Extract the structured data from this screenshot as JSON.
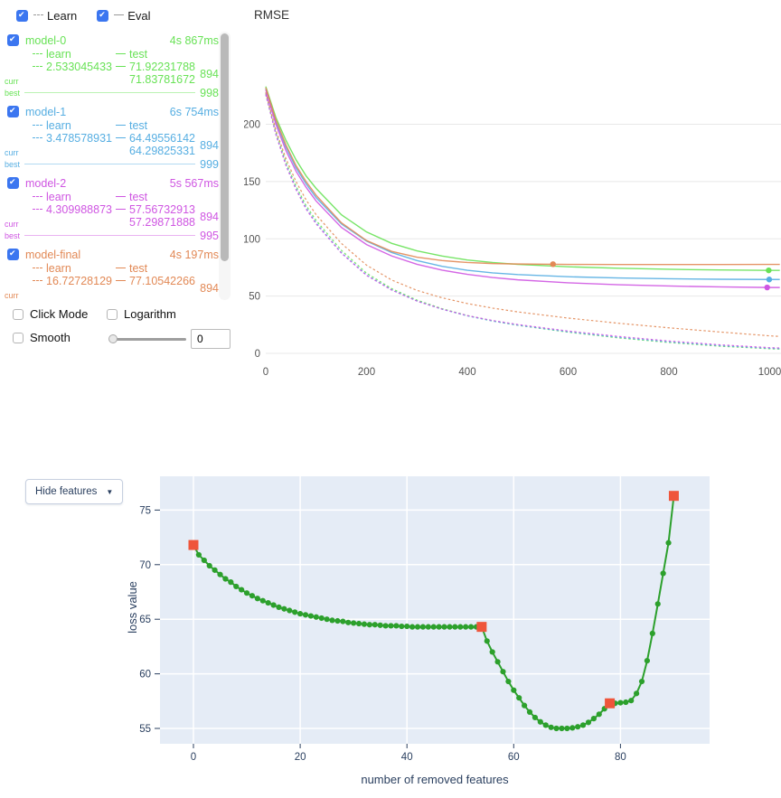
{
  "header": {
    "learn_label": "Learn",
    "learn_checked": true,
    "eval_label": "Eval",
    "eval_checked": true
  },
  "models": [
    {
      "name": "model-0",
      "color": "#68E256",
      "checked": true,
      "time": "4s 867ms",
      "learn_label": "learn",
      "test_label": "test",
      "curr_label": "curr",
      "best_label": "best",
      "curr_learn": "2.533045433",
      "curr_test": "71.92231788",
      "best_test": "71.83781672",
      "curr_iter": "894",
      "best_iter": "998"
    },
    {
      "name": "model-1",
      "color": "#56AEE2",
      "checked": true,
      "time": "6s 754ms",
      "learn_label": "learn",
      "test_label": "test",
      "curr_label": "curr",
      "best_label": "best",
      "curr_learn": "3.478578931",
      "curr_test": "64.49556142",
      "best_test": "64.29825331",
      "curr_iter": "894",
      "best_iter": "999"
    },
    {
      "name": "model-2",
      "color": "#CF56E2",
      "checked": true,
      "time": "5s 567ms",
      "learn_label": "learn",
      "test_label": "test",
      "curr_label": "curr",
      "best_label": "best",
      "curr_learn": "4.309988873",
      "curr_test": "57.56732913",
      "best_test": "57.29871888",
      "curr_iter": "894",
      "best_iter": "995"
    },
    {
      "name": "model-final",
      "color": "#E28956",
      "checked": true,
      "time": "4s 197ms",
      "learn_label": "learn",
      "test_label": "test",
      "curr_label": "curr",
      "best_label": "best",
      "curr_learn": "16.72728129",
      "curr_test": "77.10542266",
      "best_test": null,
      "curr_iter": "894",
      "best_iter": null
    }
  ],
  "controls": {
    "click_mode_label": "Click Mode",
    "click_mode_checked": false,
    "logarithm_label": "Logarithm",
    "logarithm_checked": false,
    "smooth_label": "Smooth",
    "smooth_checked": false,
    "smooth_value": "0"
  },
  "bottom": {
    "dropdown_label": "Hide features",
    "dropdown_arrow": "▼"
  },
  "chart_data": [
    {
      "type": "line",
      "title": "RMSE",
      "x_ticks": [
        0,
        200,
        400,
        600,
        800,
        1000
      ],
      "y_ticks": [
        0,
        50,
        100,
        150,
        200
      ],
      "xlim": [
        0,
        1022
      ],
      "ylim": [
        0,
        245
      ],
      "grid": "horizontal-only",
      "x": [
        0,
        20,
        40,
        60,
        80,
        100,
        150,
        200,
        250,
        300,
        350,
        400,
        450,
        500,
        600,
        700,
        800,
        900,
        1000,
        1020
      ],
      "series": [
        {
          "name": "model-0 learn",
          "color": "#68E256",
          "style": "dashed",
          "values": [
            227,
            193,
            167,
            146,
            129,
            116,
            90,
            70,
            56.5,
            46.5,
            39,
            33,
            28.3,
            24.5,
            18.5,
            13.5,
            9.5,
            6.3,
            4,
            3.7
          ]
        },
        {
          "name": "model-1 learn",
          "color": "#56AEE2",
          "style": "dashed",
          "values": [
            226,
            192,
            165,
            144,
            127,
            114,
            88,
            68.5,
            55.5,
            45.8,
            38.5,
            32.7,
            28.2,
            24.6,
            18.8,
            14,
            10,
            6.8,
            4.4,
            4.1
          ]
        },
        {
          "name": "model-2 learn",
          "color": "#CF56E2",
          "style": "dashed",
          "values": [
            226,
            191,
            164,
            143,
            126,
            113,
            87.5,
            68,
            55.2,
            45.6,
            38.6,
            33,
            28.7,
            25.2,
            19.5,
            14.8,
            10.8,
            7.5,
            5,
            4.7
          ]
        },
        {
          "name": "model-final learn",
          "color": "#E28956",
          "style": "dashed",
          "values": [
            228,
            195,
            170,
            150,
            134,
            121,
            96,
            77,
            64,
            55,
            48.5,
            43.5,
            39.5,
            36.2,
            30.8,
            26.3,
            22.3,
            18.7,
            15.3,
            14.8
          ]
        },
        {
          "name": "model-0 test",
          "color": "#68E256",
          "style": "solid",
          "values": [
            233,
            206,
            186,
            169,
            155,
            144,
            121,
            106,
            96,
            89.5,
            85,
            81.5,
            79.3,
            77.7,
            75.6,
            74.3,
            73.4,
            72.8,
            72.4,
            72.4
          ],
          "best_point": {
            "x": 998,
            "y": 72.45
          }
        },
        {
          "name": "model-1 test",
          "color": "#56AEE2",
          "style": "solid",
          "values": [
            231,
            202,
            180,
            162,
            148,
            136,
            113,
            98,
            88,
            81,
            76,
            72.5,
            70.3,
            68.8,
            66.9,
            65.8,
            65.1,
            64.7,
            64.5,
            64.5
          ],
          "best_point": {
            "x": 999,
            "y": 64.5
          }
        },
        {
          "name": "model-2 test",
          "color": "#CF56E2",
          "style": "solid",
          "values": [
            230,
            200,
            177,
            159,
            145,
            133,
            110,
            95,
            85,
            77.8,
            72.6,
            69,
            66.2,
            64.2,
            61.6,
            59.9,
            58.8,
            58,
            57.5,
            57.5
          ],
          "best_point": {
            "x": 995,
            "y": 57.55
          }
        },
        {
          "name": "model-final test",
          "color": "#E28956",
          "style": "solid",
          "values": [
            232,
            204,
            182,
            164,
            150,
            138,
            114,
            98.5,
            89,
            84,
            81,
            79.3,
            78.4,
            78,
            77.7,
            77.6,
            77.6,
            77.6,
            77.7,
            77.7
          ],
          "best_point": {
            "x": 570,
            "y": 77.85
          }
        }
      ]
    },
    {
      "type": "line",
      "xlabel": "number of removed features",
      "ylabel": "loss value",
      "x_ticks": [
        0,
        20,
        40,
        60,
        80
      ],
      "y_ticks": [
        55,
        60,
        65,
        70,
        75
      ],
      "xlim": [
        -6,
        96
      ],
      "ylim": [
        53.6,
        77.8
      ],
      "grid": "both",
      "plot_bg": "#E5ECF6",
      "line_color": "#2CA02C",
      "highlight_color": "#EF553B",
      "highlight_x": [
        0,
        54,
        78,
        90
      ],
      "x": [
        0,
        1,
        2,
        3,
        4,
        5,
        6,
        7,
        8,
        9,
        10,
        11,
        12,
        13,
        14,
        15,
        16,
        17,
        18,
        19,
        20,
        21,
        22,
        23,
        24,
        25,
        26,
        27,
        28,
        29,
        30,
        31,
        32,
        33,
        34,
        35,
        36,
        37,
        38,
        39,
        40,
        41,
        42,
        43,
        44,
        45,
        46,
        47,
        48,
        49,
        50,
        51,
        52,
        53,
        54,
        55,
        56,
        57,
        58,
        59,
        60,
        61,
        62,
        63,
        64,
        65,
        66,
        67,
        68,
        69,
        70,
        71,
        72,
        73,
        74,
        75,
        76,
        77,
        78,
        79,
        80,
        81,
        82,
        83,
        84,
        85,
        86,
        87,
        88,
        89,
        90
      ],
      "y": [
        71.8,
        70.9,
        70.4,
        69.9,
        69.5,
        69.1,
        68.7,
        68.4,
        68.0,
        67.7,
        67.4,
        67.15,
        66.9,
        66.7,
        66.5,
        66.3,
        66.1,
        65.95,
        65.8,
        65.65,
        65.5,
        65.4,
        65.3,
        65.2,
        65.1,
        65.0,
        64.9,
        64.85,
        64.8,
        64.7,
        64.65,
        64.6,
        64.55,
        64.5,
        64.5,
        64.45,
        64.4,
        64.4,
        64.4,
        64.35,
        64.35,
        64.3,
        64.3,
        64.3,
        64.3,
        64.3,
        64.3,
        64.3,
        64.3,
        64.3,
        64.3,
        64.3,
        64.3,
        64.3,
        64.3,
        63.0,
        62.0,
        61.1,
        60.2,
        59.3,
        58.5,
        57.8,
        57.1,
        56.5,
        56.0,
        55.6,
        55.3,
        55.1,
        55.0,
        55.0,
        55.0,
        55.05,
        55.15,
        55.3,
        55.55,
        55.9,
        56.3,
        56.8,
        57.3,
        57.3,
        57.35,
        57.4,
        57.55,
        58.2,
        59.3,
        61.2,
        63.7,
        66.4,
        69.2,
        72.0,
        76.3
      ]
    }
  ]
}
